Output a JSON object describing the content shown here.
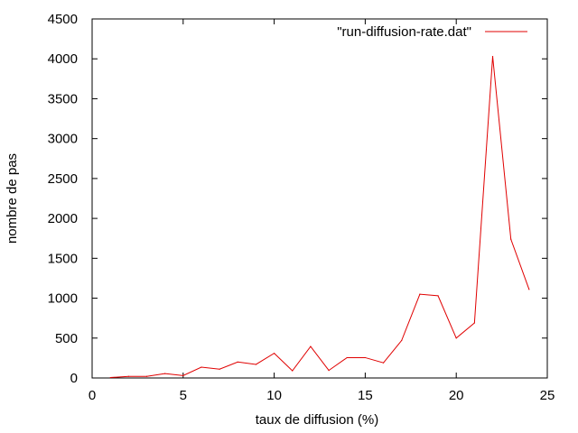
{
  "chart_data": {
    "type": "line",
    "title": "",
    "xlabel": "taux de diffusion (%)",
    "ylabel": "nombre de pas",
    "xlim": [
      0,
      25
    ],
    "ylim": [
      0,
      4500
    ],
    "xticks": [
      0,
      5,
      10,
      15,
      20,
      25
    ],
    "yticks": [
      0,
      500,
      1000,
      1500,
      2000,
      2500,
      3000,
      3500,
      4000,
      4500
    ],
    "grid": false,
    "legend_position": "top-right",
    "series": [
      {
        "name": "\"run-diffusion-rate.dat\"",
        "color": "#e00000",
        "x": [
          1,
          2,
          3,
          4,
          5,
          6,
          7,
          8,
          9,
          10,
          11,
          12,
          13,
          14,
          15,
          16,
          17,
          18,
          19,
          20,
          21,
          22,
          23,
          24
        ],
        "y": [
          5,
          20,
          20,
          55,
          30,
          135,
          110,
          200,
          170,
          310,
          90,
          395,
          95,
          255,
          255,
          190,
          470,
          1050,
          1030,
          500,
          690,
          4030,
          1740,
          1110
        ]
      }
    ]
  }
}
